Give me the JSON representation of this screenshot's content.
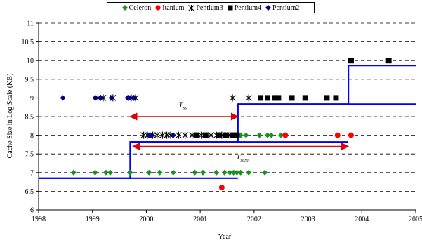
{
  "chart_data": {
    "type": "scatter",
    "xlabel": "Year",
    "ylabel": "Cache Size in Log Scale (KB)",
    "xlim": [
      1998,
      2005
    ],
    "ylim": [
      6,
      11
    ],
    "xticks": [
      "1998",
      "1999",
      "2000",
      "2001",
      "2002",
      "2003",
      "2004",
      "2005"
    ],
    "yticks": [
      "6",
      "6.5",
      "7",
      "7.5",
      "8",
      "8.5",
      "9",
      "9.5",
      "10",
      "10.5",
      "11"
    ],
    "grid": "horizontal-dashed",
    "legend_position": "top-center",
    "series": [
      {
        "name": "Celeron",
        "marker": "diamond",
        "color": "#1f8f1f",
        "points": [
          [
            1998.65,
            7
          ],
          [
            1999.05,
            7
          ],
          [
            1999.25,
            7
          ],
          [
            1999.33,
            7
          ],
          [
            1999.7,
            7
          ],
          [
            2000.05,
            7
          ],
          [
            2000.25,
            7
          ],
          [
            2000.5,
            7
          ],
          [
            2000.9,
            7
          ],
          [
            2001.05,
            7
          ],
          [
            2001.3,
            7
          ],
          [
            2001.45,
            7
          ],
          [
            2001.55,
            7
          ],
          [
            2001.62,
            7
          ],
          [
            2001.68,
            7
          ],
          [
            2001.75,
            7
          ],
          [
            2001.9,
            7
          ],
          [
            2002.2,
            7
          ],
          [
            2001.75,
            8
          ],
          [
            2001.85,
            8
          ],
          [
            2002.1,
            8
          ],
          [
            2002.25,
            8
          ],
          [
            2002.32,
            8
          ],
          [
            2002.5,
            8
          ]
        ]
      },
      {
        "name": "Itanium",
        "marker": "circle",
        "color": "#ff0000",
        "points": [
          [
            2001.4,
            6.6
          ],
          [
            2002.58,
            8
          ],
          [
            2003.55,
            8
          ],
          [
            2003.8,
            8
          ]
        ]
      },
      {
        "name": "Pentium3",
        "marker": "star",
        "color": "#000000",
        "points": [
          [
            1999.1,
            9
          ],
          [
            1999.2,
            9
          ],
          [
            1999.38,
            9
          ],
          [
            1999.72,
            9
          ],
          [
            1999.8,
            9
          ],
          [
            2001.6,
            9
          ],
          [
            2001.9,
            9
          ],
          [
            1999.95,
            8
          ],
          [
            2000.02,
            8
          ],
          [
            2000.12,
            8
          ],
          [
            2000.2,
            8
          ],
          [
            2000.3,
            8
          ],
          [
            2000.38,
            8
          ],
          [
            2000.45,
            8
          ],
          [
            2000.6,
            8
          ],
          [
            2000.72,
            8
          ],
          [
            2000.85,
            8
          ],
          [
            2001.02,
            8
          ],
          [
            2001.2,
            8
          ],
          [
            2001.3,
            8
          ],
          [
            2001.4,
            8
          ],
          [
            2001.55,
            8
          ]
        ]
      },
      {
        "name": "Pentium4",
        "marker": "square",
        "color": "#000000",
        "points": [
          [
            2000.93,
            8
          ],
          [
            2001.1,
            8
          ],
          [
            2001.35,
            8
          ],
          [
            2001.48,
            8
          ],
          [
            2001.6,
            8
          ],
          [
            2001.68,
            8
          ],
          [
            2002.12,
            9
          ],
          [
            2002.25,
            9
          ],
          [
            2002.38,
            9
          ],
          [
            2002.45,
            9
          ],
          [
            2002.7,
            9
          ],
          [
            2002.95,
            9
          ],
          [
            2003.35,
            9
          ],
          [
            2003.52,
            9
          ],
          [
            2003.8,
            10
          ],
          [
            2004.5,
            10
          ]
        ]
      },
      {
        "name": "Pentium2",
        "marker": "diamond",
        "color": "#00008b",
        "points": [
          [
            1998.45,
            9
          ],
          [
            1999.05,
            9
          ],
          [
            1999.15,
            9
          ],
          [
            1999.35,
            9
          ],
          [
            1999.65,
            9
          ],
          [
            1999.7,
            9
          ],
          [
            1999.78,
            9
          ],
          [
            2000.05,
            8
          ],
          [
            2000.1,
            8
          ],
          [
            2000.5,
            8
          ]
        ]
      }
    ],
    "step_lines": [
      {
        "color": "#0000ff",
        "points": [
          [
            1998,
            6.85
          ],
          [
            1999.7,
            6.85
          ],
          [
            1999.7,
            7.82
          ],
          [
            2001.7,
            7.82
          ],
          [
            2001.7,
            8.83
          ],
          [
            2003.75,
            8.83
          ],
          [
            2003.75,
            9.87
          ],
          [
            2005,
            9.87
          ]
        ]
      },
      {
        "color": "#0000ff",
        "points": [
          [
            1998,
            6.85
          ],
          [
            2001.7,
            6.85
          ]
        ]
      },
      {
        "color": "#0000ff",
        "points": [
          [
            1999.7,
            7.82
          ],
          [
            2003.75,
            7.82
          ]
        ]
      },
      {
        "color": "#0000ff",
        "points": [
          [
            2001.7,
            8.83
          ],
          [
            2005,
            8.83
          ]
        ]
      }
    ],
    "annotations": [
      {
        "label": "T",
        "sub": "sp",
        "arrow": [
          [
            1999.7,
            8.5
          ],
          [
            2001.7,
            8.5
          ]
        ],
        "text_at": [
          2000.68,
          8.75
        ]
      },
      {
        "label": "T",
        "sub": "step",
        "arrow": [
          [
            1999.75,
            7.7
          ],
          [
            2003.75,
            7.7
          ]
        ],
        "text_at": [
          2001.78,
          7.35
        ]
      }
    ]
  }
}
